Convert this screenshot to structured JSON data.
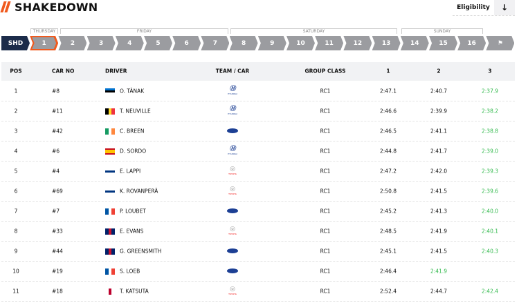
{
  "header": {
    "title": "SHAKEDOWN",
    "eligibility_label": "Eligibility",
    "download_icon": "arrow-down-icon"
  },
  "days": [
    {
      "label": "THURSDAY"
    },
    {
      "label": "FRIDAY"
    },
    {
      "label": "SATURDAY"
    },
    {
      "label": "SUNDAY"
    }
  ],
  "stages": [
    "SHD",
    "1",
    "2",
    "3",
    "4",
    "5",
    "6",
    "7",
    "8",
    "9",
    "10",
    "11",
    "12",
    "13",
    "14",
    "15",
    "16",
    "finish-flag-icon"
  ],
  "active_stage": "1",
  "columns": [
    "POS",
    "CAR NO",
    "DRIVER",
    "TEAM / CAR",
    "GROUP CLASS",
    "1",
    "2",
    "3"
  ],
  "rows": [
    {
      "pos": "1",
      "car": "#8",
      "driver": "O. TÄNAK",
      "flag": [
        "#0072ce",
        "#000000",
        "#ffffff"
      ],
      "flag_dir": "h",
      "team": "hyundai",
      "cls": "RC1",
      "t1": "2:47.1",
      "t2": "2:40.7",
      "t3": "2:37.9",
      "best": 3
    },
    {
      "pos": "2",
      "car": "#11",
      "driver": "T. NEUVILLE",
      "flag": [
        "#000000",
        "#fdda24",
        "#ef3340"
      ],
      "flag_dir": "v",
      "team": "hyundai",
      "cls": "RC1",
      "t1": "2:46.6",
      "t2": "2:39.9",
      "t3": "2:38.2",
      "best": 3
    },
    {
      "pos": "3",
      "car": "#42",
      "driver": "C. BREEN",
      "flag": [
        "#169b62",
        "#ffffff",
        "#ff883e"
      ],
      "flag_dir": "v",
      "team": "ford",
      "cls": "RC1",
      "t1": "2:46.5",
      "t2": "2:41.1",
      "t3": "2:38.8",
      "best": 3
    },
    {
      "pos": "4",
      "car": "#6",
      "driver": "D. SORDO",
      "flag": [
        "#c60b1e",
        "#ffc400",
        "#ffc400",
        "#c60b1e"
      ],
      "flag_dir": "h",
      "team": "hyundai",
      "cls": "RC1",
      "t1": "2:44.8",
      "t2": "2:41.7",
      "t3": "2:39.0",
      "best": 3
    },
    {
      "pos": "5",
      "car": "#4",
      "driver": "E. LAPPI",
      "flag": [
        "#ffffff",
        "#003580",
        "#ffffff"
      ],
      "flag_dir": "h",
      "team": "toyota",
      "cls": "RC1",
      "t1": "2:47.2",
      "t2": "2:42.0",
      "t3": "2:39.3",
      "best": 3
    },
    {
      "pos": "6",
      "car": "#69",
      "driver": "K. ROVANPERÄ",
      "flag": [
        "#ffffff",
        "#003580",
        "#ffffff"
      ],
      "flag_dir": "h",
      "team": "toyota",
      "cls": "RC1",
      "t1": "2:50.8",
      "t2": "2:41.5",
      "t3": "2:39.6",
      "best": 3
    },
    {
      "pos": "7",
      "car": "#7",
      "driver": "P. LOUBET",
      "flag": [
        "#0055a4",
        "#ffffff",
        "#ef4135"
      ],
      "flag_dir": "v",
      "team": "ford",
      "cls": "RC1",
      "t1": "2:45.2",
      "t2": "2:41.3",
      "t3": "2:40.0",
      "best": 3
    },
    {
      "pos": "8",
      "car": "#33",
      "driver": "E. EVANS",
      "flag": [
        "#012169",
        "#c8102e",
        "#012169"
      ],
      "flag_dir": "v",
      "team": "toyota",
      "cls": "RC1",
      "t1": "2:48.5",
      "t2": "2:41.9",
      "t3": "2:40.1",
      "best": 3
    },
    {
      "pos": "9",
      "car": "#44",
      "driver": "G. GREENSMITH",
      "flag": [
        "#012169",
        "#c8102e",
        "#012169"
      ],
      "flag_dir": "v",
      "team": "ford",
      "cls": "RC1",
      "t1": "2:45.1",
      "t2": "2:41.5",
      "t3": "2:40.3",
      "best": 3
    },
    {
      "pos": "10",
      "car": "#19",
      "driver": "S. LOEB",
      "flag": [
        "#0055a4",
        "#ffffff",
        "#ef4135"
      ],
      "flag_dir": "v",
      "team": "ford",
      "cls": "RC1",
      "t1": "2:46.4",
      "t2": "2:41.9",
      "t3": "",
      "best": 2
    },
    {
      "pos": "11",
      "car": "#18",
      "driver": "T. KATSUTA",
      "flag": [
        "#ffffff",
        "#bc002d",
        "#ffffff"
      ],
      "flag_dir": "v",
      "team": "toyota",
      "cls": "RC1",
      "t1": "2:52.4",
      "t2": "2:44.7",
      "t3": "2:42.4",
      "best": 3
    }
  ],
  "colors": {
    "accent": "#f05a1e",
    "navy": "#1c2c4a",
    "best_time": "#2fb84a",
    "stage_grey": "#9b9ca0"
  }
}
